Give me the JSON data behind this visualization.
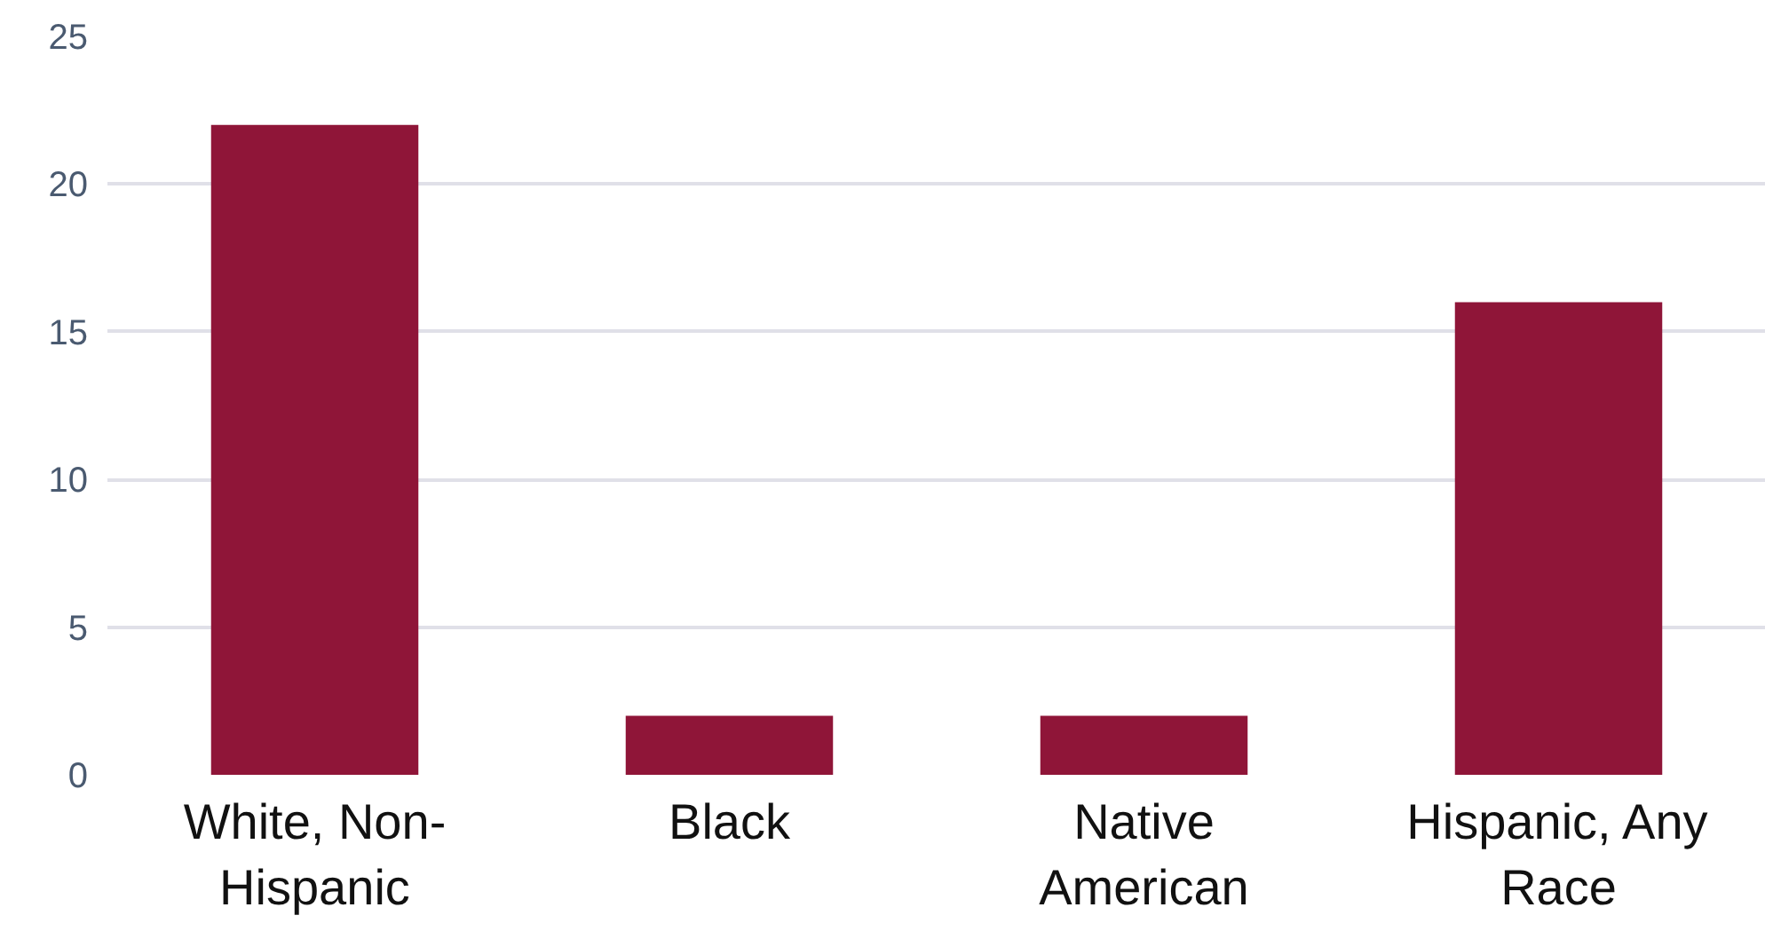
{
  "chart_data": {
    "type": "bar",
    "categories": [
      "White, Non-Hispanic",
      "Black",
      "Native American",
      "Hispanic, Any Race"
    ],
    "values": [
      22,
      2,
      2,
      16
    ],
    "color": "#8f1538",
    "ylim": [
      0,
      25
    ],
    "yticks": [
      0,
      5,
      10,
      15,
      20,
      25
    ],
    "grid": "y"
  }
}
